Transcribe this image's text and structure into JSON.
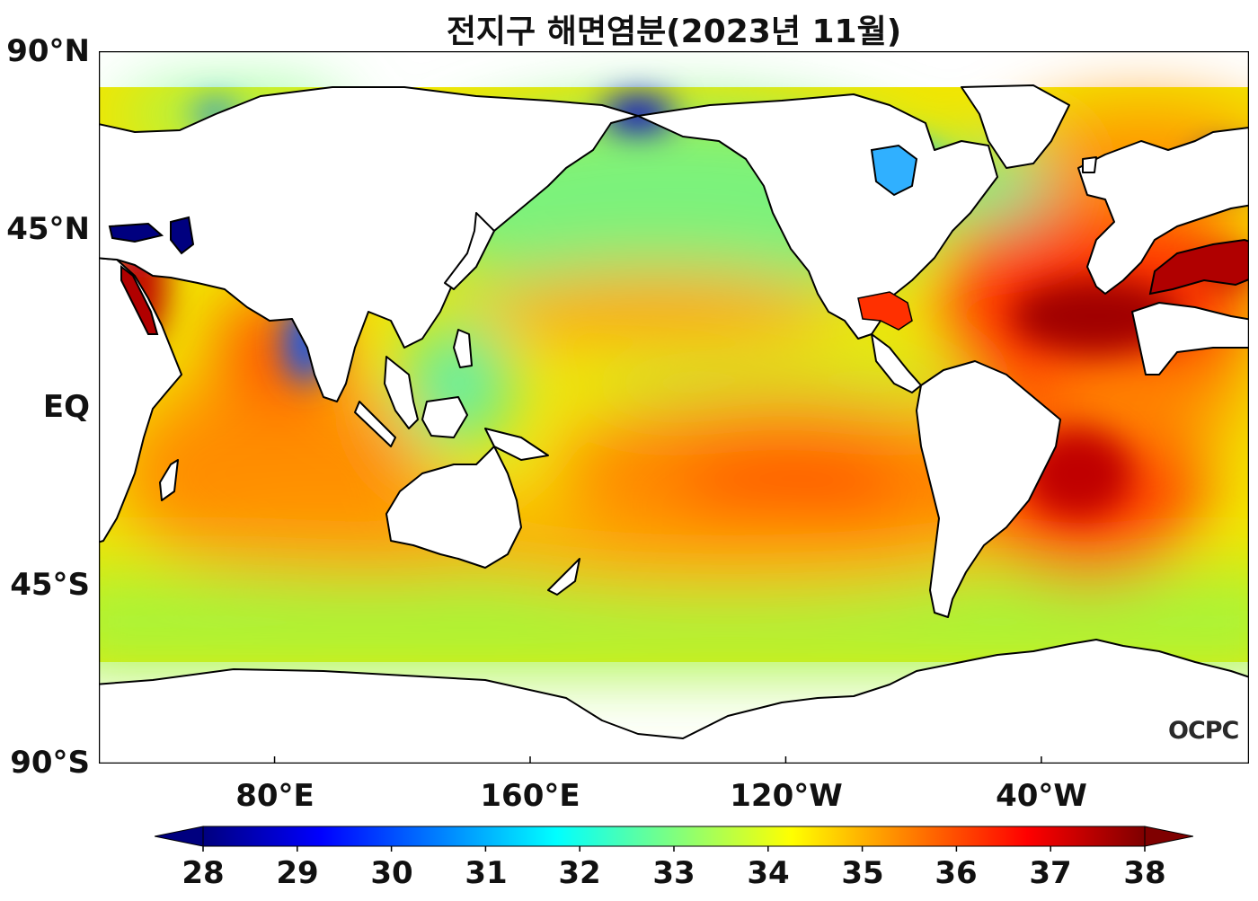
{
  "title": "전지구 해면염분(2023년 11월)",
  "y_ticks": [
    {
      "label": "90°N",
      "lat": 90
    },
    {
      "label": "45°N",
      "lat": 45
    },
    {
      "label": "EQ",
      "lat": 0
    },
    {
      "label": "45°S",
      "lat": -45
    },
    {
      "label": "90°S",
      "lat": -90
    }
  ],
  "x_ticks": [
    {
      "label": "80°E",
      "lon": 80
    },
    {
      "label": "160°E",
      "lon": 160
    },
    {
      "label": "120°W",
      "lon": 240
    },
    {
      "label": "40°W",
      "lon": 320
    }
  ],
  "map_extent": {
    "lon_min": 25,
    "lon_max": 385,
    "lat_min": -90,
    "lat_max": 90
  },
  "colorbar": {
    "ticks": [
      "28",
      "29",
      "30",
      "31",
      "32",
      "33",
      "34",
      "35",
      "36",
      "37",
      "38"
    ],
    "min": 28,
    "max": 38,
    "extend": "both",
    "colormap": [
      "#00007f",
      "#0000ff",
      "#007fff",
      "#00ffff",
      "#7fff7f",
      "#ffff00",
      "#ff7f00",
      "#ff0000",
      "#7f0000"
    ]
  },
  "watermark": "OCPC"
}
